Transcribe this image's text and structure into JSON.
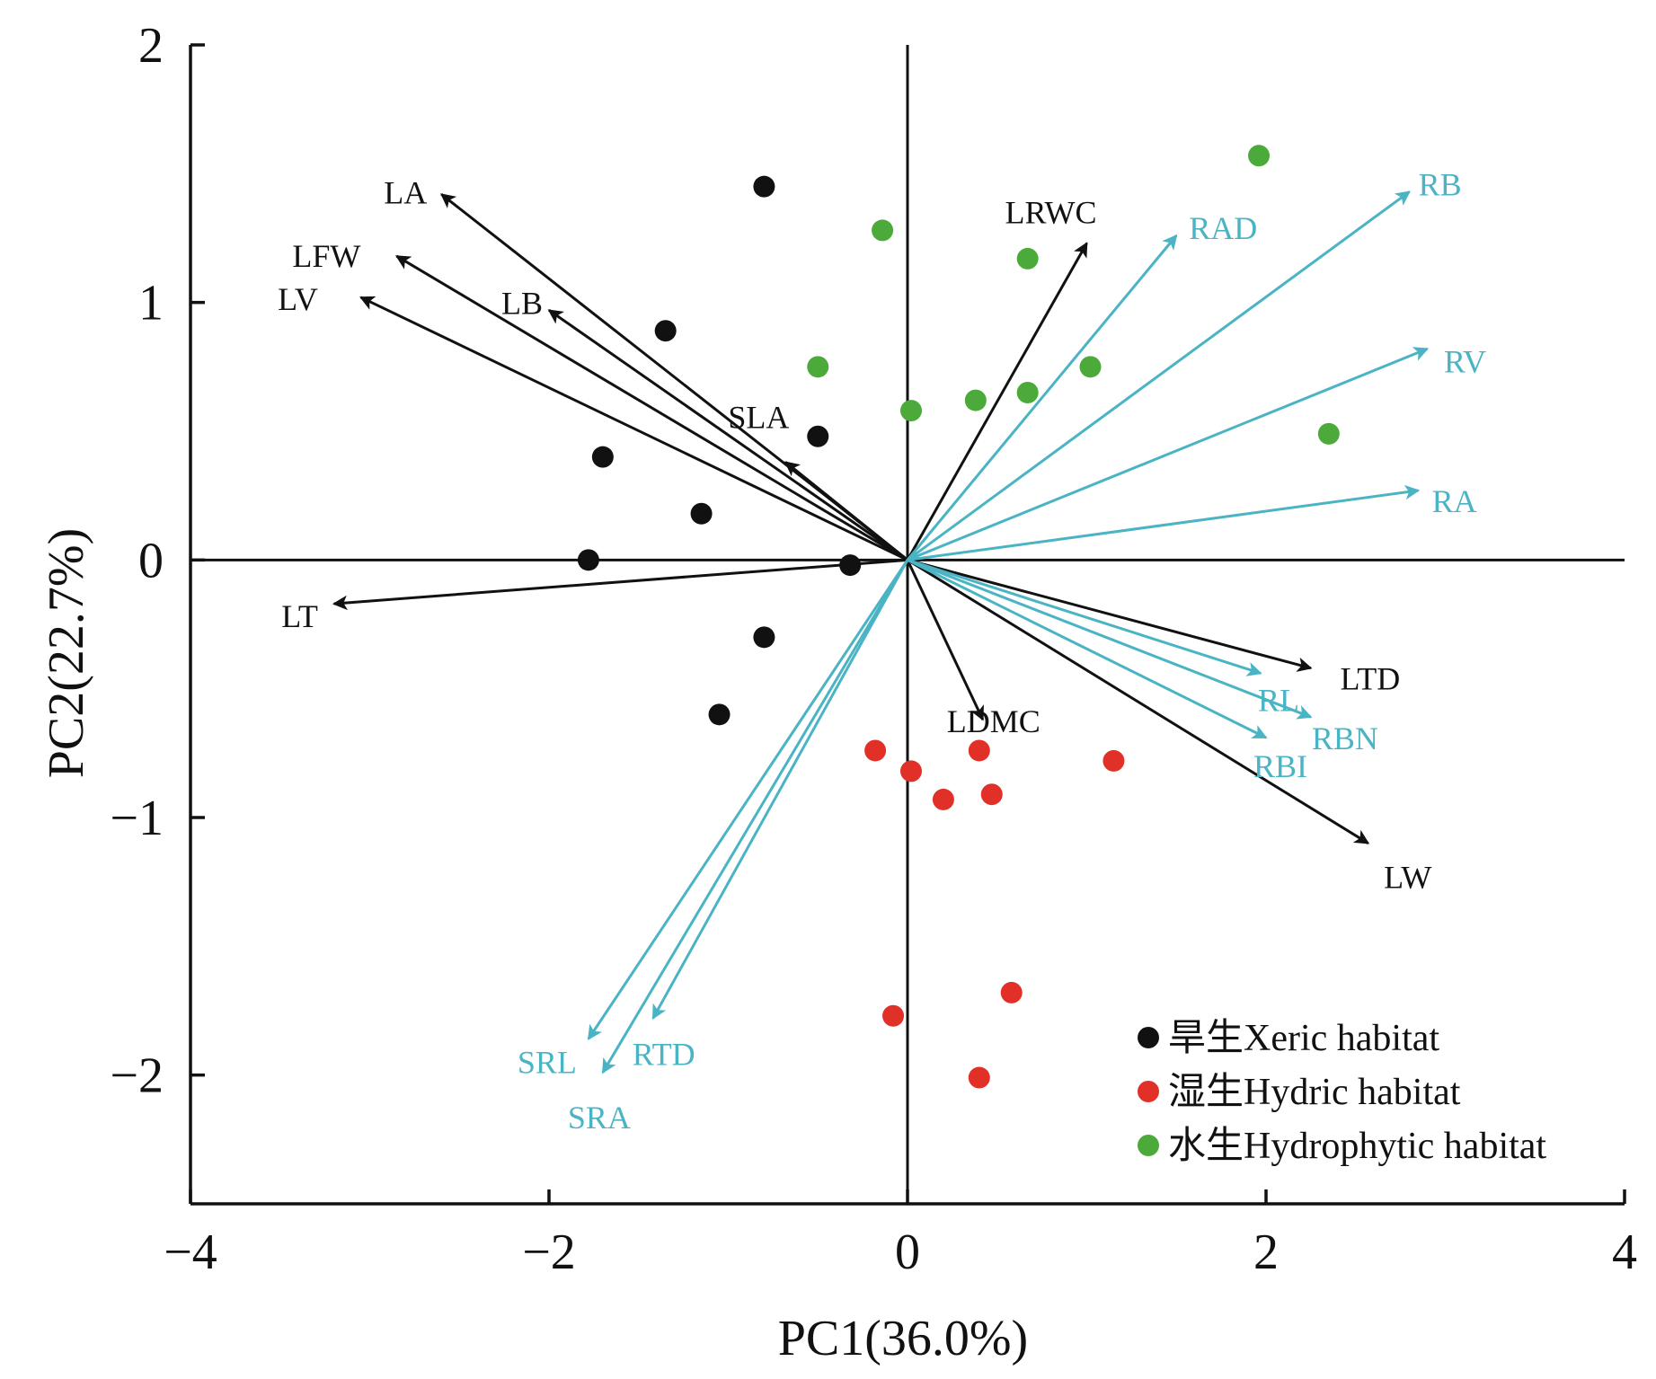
{
  "chart_data": {
    "type": "scatter",
    "subtype": "pca-biplot",
    "title": "",
    "xlabel": "PC1(36.0%)",
    "ylabel": "PC2(22.7%)",
    "xlim": [
      -4,
      4
    ],
    "ylim": [
      -2.5,
      2
    ],
    "xticks": [
      {
        "value": -4,
        "label": "−4"
      },
      {
        "value": -2,
        "label": "−2"
      },
      {
        "value": 0,
        "label": "0"
      },
      {
        "value": 2,
        "label": "2"
      },
      {
        "value": 4,
        "label": "4"
      }
    ],
    "yticks": [
      {
        "value": 2,
        "label": "2"
      },
      {
        "value": 1,
        "label": "1"
      },
      {
        "value": 0,
        "label": "0"
      },
      {
        "value": -1,
        "label": "−1"
      },
      {
        "value": -2,
        "label": "−2"
      }
    ],
    "zero_lines": true,
    "legend_position": "bottom-right",
    "series": [
      {
        "name": "旱生Xeric habitat",
        "color": "#111111",
        "points": [
          [
            -0.8,
            1.45
          ],
          [
            -1.35,
            0.89
          ],
          [
            -1.7,
            0.4
          ],
          [
            -0.5,
            0.48
          ],
          [
            -1.15,
            0.18
          ],
          [
            -1.78,
            0.0
          ],
          [
            -0.32,
            -0.02
          ],
          [
            -0.8,
            -0.3
          ],
          [
            -1.05,
            -0.6
          ]
        ]
      },
      {
        "name": "湿生Hydric habitat",
        "color": "#e03028",
        "points": [
          [
            -0.18,
            -0.74
          ],
          [
            0.02,
            -0.82
          ],
          [
            0.2,
            -0.93
          ],
          [
            0.4,
            -0.74
          ],
          [
            0.47,
            -0.91
          ],
          [
            1.15,
            -0.78
          ],
          [
            -0.08,
            -1.77
          ],
          [
            0.58,
            -1.68
          ],
          [
            0.4,
            -2.01
          ]
        ]
      },
      {
        "name": "水生Hydrophytic habitat",
        "color": "#4caa3a",
        "points": [
          [
            -0.14,
            1.28
          ],
          [
            -0.5,
            0.75
          ],
          [
            0.02,
            0.58
          ],
          [
            0.38,
            0.62
          ],
          [
            0.67,
            1.17
          ],
          [
            0.67,
            0.65
          ],
          [
            1.02,
            0.75
          ],
          [
            1.96,
            1.57
          ],
          [
            2.35,
            0.49
          ]
        ]
      }
    ],
    "vector_groups": [
      {
        "color": "#111111",
        "vectors": [
          {
            "name": "LA",
            "x": -2.6,
            "y": 1.42
          },
          {
            "name": "LFW",
            "x": -2.85,
            "y": 1.18
          },
          {
            "name": "LV",
            "x": -3.05,
            "y": 1.02
          },
          {
            "name": "LB",
            "x": -2.0,
            "y": 0.97
          },
          {
            "name": "SLA",
            "x": -0.68,
            "y": 0.38
          },
          {
            "name": "LT",
            "x": -3.2,
            "y": -0.17
          },
          {
            "name": "LRWC",
            "x": 1.0,
            "y": 1.23
          },
          {
            "name": "LDMC",
            "x": 0.42,
            "y": -0.62
          },
          {
            "name": "LTD",
            "x": 2.25,
            "y": -0.42
          },
          {
            "name": "LW",
            "x": 2.57,
            "y": -1.1
          }
        ]
      },
      {
        "color": "#4ab4c4",
        "vectors": [
          {
            "name": "RB",
            "x": 2.8,
            "y": 1.43
          },
          {
            "name": "RAD",
            "x": 1.5,
            "y": 1.26
          },
          {
            "name": "RV",
            "x": 2.9,
            "y": 0.82
          },
          {
            "name": "RA",
            "x": 2.85,
            "y": 0.27
          },
          {
            "name": "RL",
            "x": 1.97,
            "y": -0.44
          },
          {
            "name": "RBN",
            "x": 2.25,
            "y": -0.61
          },
          {
            "name": "RBI",
            "x": 2.0,
            "y": -0.69
          },
          {
            "name": "SRL",
            "x": -1.78,
            "y": -1.86
          },
          {
            "name": "SRA",
            "x": -1.7,
            "y": -1.99
          },
          {
            "name": "RTD",
            "x": -1.42,
            "y": -1.78
          }
        ]
      }
    ]
  }
}
